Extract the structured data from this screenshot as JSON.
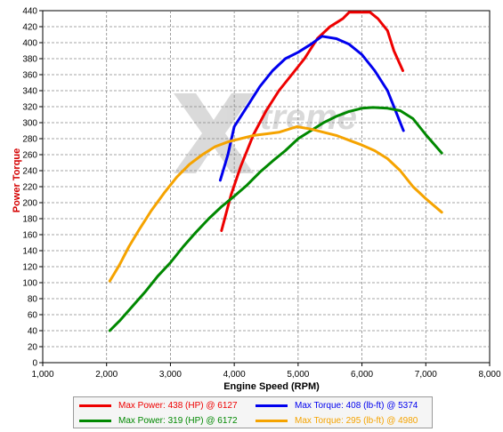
{
  "chart_data": {
    "type": "line",
    "xlabel": "Engine Speed (RPM)",
    "ylabel": "Power Torque",
    "xlim": [
      1000,
      8000
    ],
    "ylim": [
      0,
      440
    ],
    "x_ticks": [
      "1,000",
      "2,000",
      "3,000",
      "4,000",
      "5,000",
      "6,000",
      "7,000",
      "8,000"
    ],
    "y_ticks": [
      "0",
      "20",
      "40",
      "60",
      "80",
      "100",
      "120",
      "140",
      "160",
      "180",
      "200",
      "220",
      "240",
      "260",
      "280",
      "300",
      "320",
      "340",
      "360",
      "380",
      "400",
      "420",
      "440"
    ],
    "grid": true,
    "legend_position": "bottom",
    "watermark": "Xtreme",
    "series": [
      {
        "name": "Max Power: 438 (HP) @ 6127",
        "color": "#ee0000",
        "x": [
          3800,
          3950,
          4100,
          4300,
          4500,
          4700,
          4900,
          5100,
          5300,
          5500,
          5700,
          5800,
          6000,
          6127,
          6250,
          6400,
          6500,
          6640
        ],
        "y": [
          165,
          210,
          245,
          285,
          315,
          340,
          360,
          380,
          405,
          420,
          430,
          438,
          438,
          438,
          430,
          415,
          390,
          365
        ]
      },
      {
        "name": "Max Torque: 408 (lb-ft) @ 5374",
        "color": "#0000ee",
        "x": [
          3780,
          3900,
          4000,
          4200,
          4400,
          4600,
          4800,
          5000,
          5200,
          5374,
          5600,
          5800,
          6000,
          6200,
          6400,
          6650
        ],
        "y": [
          228,
          260,
          295,
          320,
          345,
          365,
          380,
          388,
          398,
          408,
          405,
          398,
          385,
          365,
          340,
          290
        ]
      },
      {
        "name": "Max Power: 319 (HP) @ 6172",
        "color": "#008800",
        "x": [
          2050,
          2200,
          2400,
          2600,
          2800,
          3000,
          3200,
          3400,
          3600,
          3800,
          4000,
          4200,
          4400,
          4600,
          4800,
          5000,
          5200,
          5400,
          5600,
          5800,
          6000,
          6172,
          6400,
          6600,
          6800,
          7000,
          7250
        ],
        "y": [
          40,
          52,
          70,
          88,
          108,
          125,
          145,
          163,
          180,
          195,
          208,
          222,
          238,
          252,
          265,
          280,
          290,
          300,
          308,
          314,
          318,
          319,
          318,
          315,
          305,
          285,
          262
        ]
      },
      {
        "name": "Max Torque: 295 (lb-ft) @ 4980",
        "color": "#f5a300",
        "x": [
          2050,
          2200,
          2350,
          2500,
          2700,
          2900,
          3100,
          3300,
          3500,
          3700,
          3900,
          4100,
          4300,
          4500,
          4700,
          4980,
          5200,
          5400,
          5600,
          5800,
          6000,
          6200,
          6400,
          6600,
          6800,
          7000,
          7250
        ],
        "y": [
          102,
          122,
          145,
          165,
          190,
          212,
          232,
          248,
          260,
          270,
          276,
          280,
          284,
          286,
          288,
          295,
          292,
          288,
          284,
          278,
          272,
          265,
          255,
          240,
          220,
          205,
          188
        ]
      }
    ]
  },
  "legend_items": [
    {
      "label": "Max Power: 438 (HP) @ 6127",
      "color": "#ee0000"
    },
    {
      "label": "Max Torque: 408 (lb-ft) @ 5374",
      "color": "#0000ee"
    },
    {
      "label": "Max Power: 319 (HP) @ 6172",
      "color": "#008800"
    },
    {
      "label": "Max Torque: 295 (lb-ft) @ 4980",
      "color": "#f5a300"
    }
  ]
}
